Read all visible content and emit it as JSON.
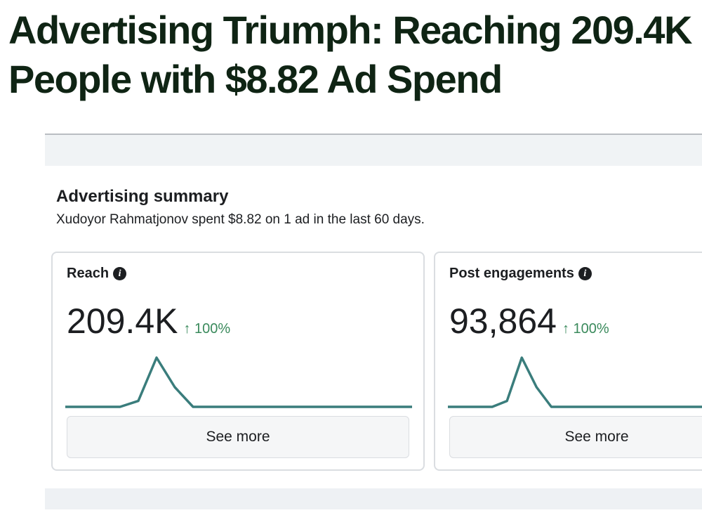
{
  "headline": "Advertising Triumph: Reaching 209.4K People with $8.82 Ad Spend",
  "summary": {
    "title": "Advertising summary",
    "subtitle": "Xudoyor Rahmatjonov spent $8.82 on 1 ad in the last 60 days."
  },
  "cards": [
    {
      "label": "Reach",
      "info_icon": "info-icon",
      "value": "209.4K",
      "change": "↑ 100%",
      "see_more": "See more",
      "sparkline": [
        0,
        0,
        0,
        0,
        0.12,
        1,
        0.4,
        0,
        0,
        0,
        0,
        0,
        0,
        0,
        0,
        0,
        0,
        0,
        0,
        0
      ]
    },
    {
      "label": "Post engagements",
      "info_icon": "info-icon",
      "value": "93,864",
      "change": "↑ 100%",
      "see_more": "See more",
      "sparkline": [
        0,
        0,
        0,
        0,
        0.12,
        1,
        0.4,
        0,
        0,
        0,
        0,
        0,
        0,
        0,
        0,
        0,
        0,
        0,
        0,
        0
      ]
    }
  ],
  "colors": {
    "headline": "#0f2414",
    "sparkline": "#3a7d7c",
    "positive_change": "#3a8a5c"
  }
}
